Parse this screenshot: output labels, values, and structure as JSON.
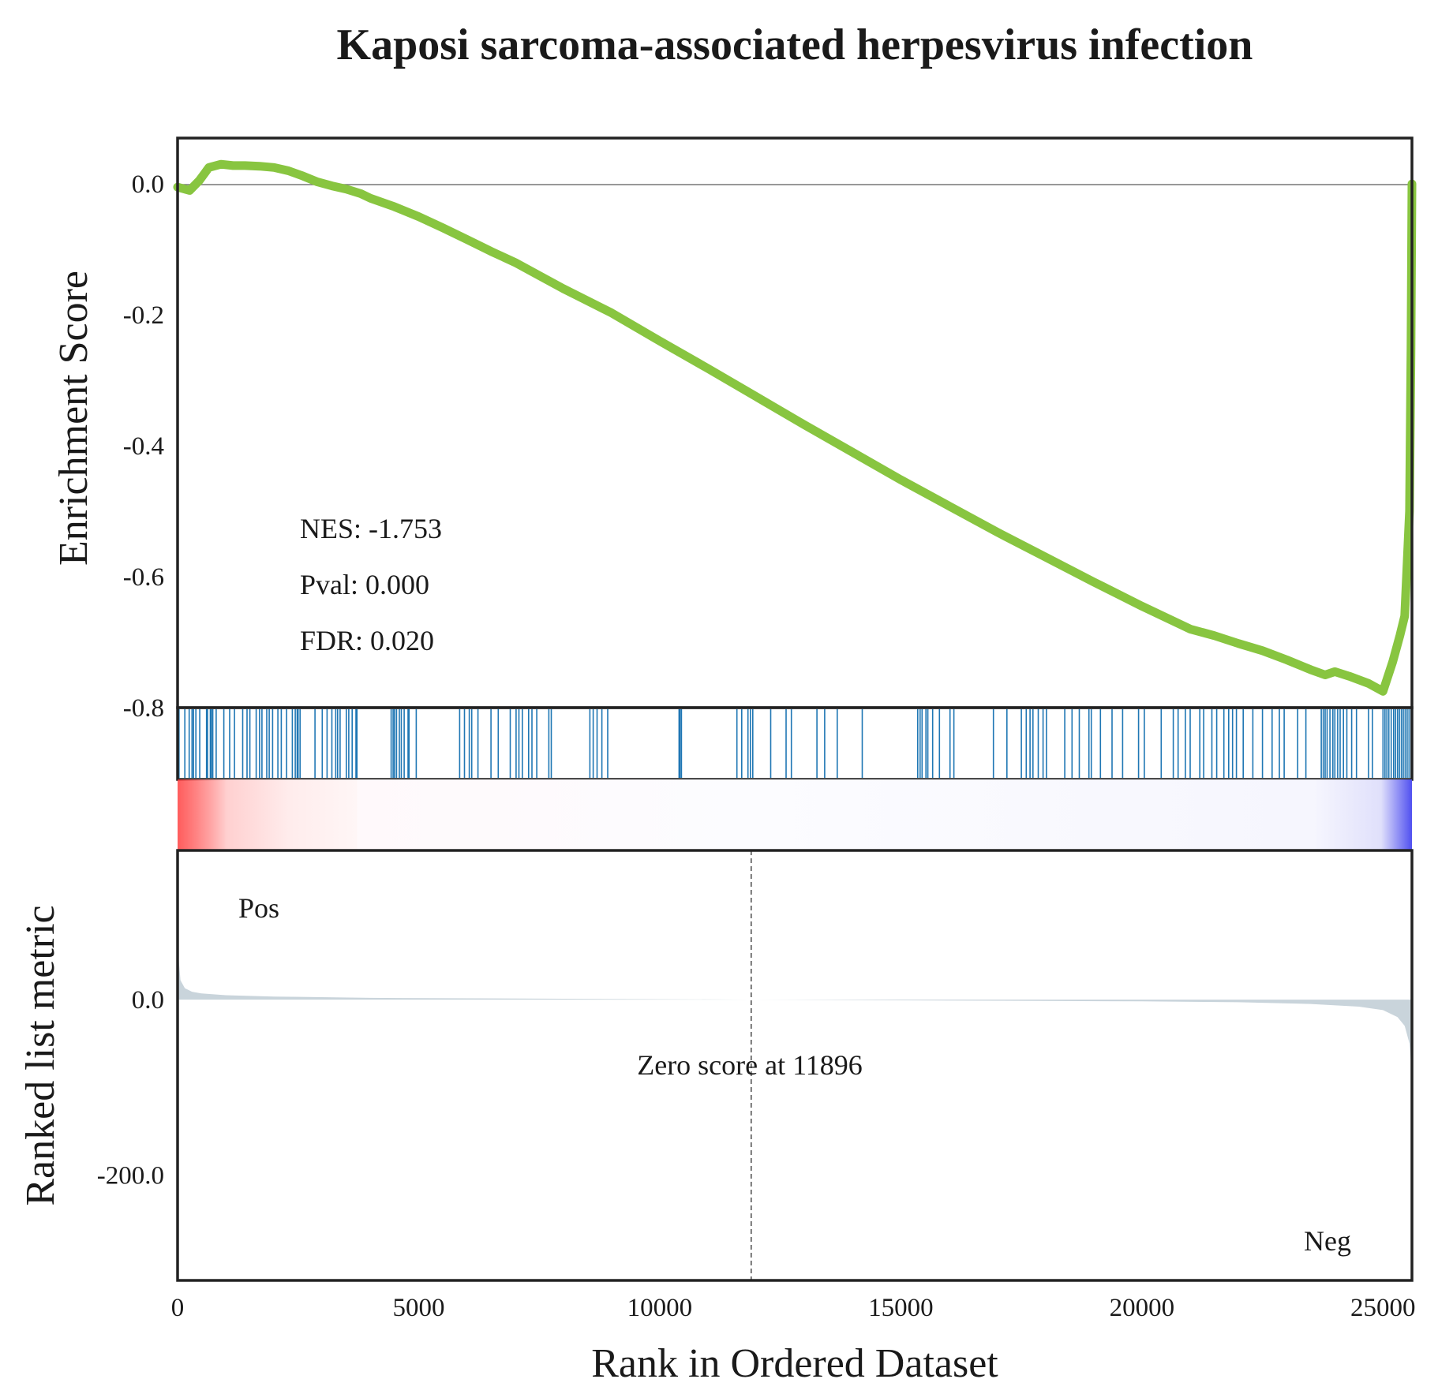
{
  "chart_data": {
    "type": "line",
    "title": "Kaposi sarcoma-associated herpesvirus infection",
    "xlabel": "Rank in Ordered Dataset",
    "xlim": [
      0,
      25600
    ],
    "x_ticks": [
      "0",
      "5000",
      "10000",
      "15000",
      "20000",
      "25000"
    ],
    "x_tick_values": [
      0,
      5000,
      10000,
      15000,
      20000,
      25000
    ],
    "es_panel": {
      "ylabel": "Enrichment Score",
      "ylim": [
        -0.8,
        0.07
      ],
      "y_ticks": [
        "0.0",
        "-0.2",
        "-0.4",
        "-0.6",
        "-0.8"
      ],
      "y_tick_values": [
        0.0,
        -0.2,
        -0.4,
        -0.6,
        -0.8
      ],
      "series": [
        {
          "color": "#88c540",
          "x": [
            0,
            250,
            450,
            650,
            900,
            1150,
            1400,
            1700,
            2000,
            2300,
            2600,
            2900,
            3200,
            3500,
            3800,
            4000,
            4500,
            5000,
            5500,
            6000,
            6500,
            7000,
            7500,
            8000,
            9000,
            10000,
            11000,
            12000,
            13000,
            14000,
            15000,
            16000,
            17000,
            18000,
            19000,
            20000,
            21000,
            21500,
            22000,
            22500,
            23000,
            23500,
            23800,
            24000,
            24300,
            24700,
            25000,
            25200,
            25350,
            25450,
            25550,
            25580,
            25600
          ],
          "y": [
            -0.005,
            -0.01,
            0.005,
            0.025,
            0.03,
            0.028,
            0.028,
            0.027,
            0.025,
            0.02,
            0.012,
            0.003,
            -0.003,
            -0.008,
            -0.015,
            -0.022,
            -0.035,
            -0.05,
            -0.067,
            -0.085,
            -0.103,
            -0.12,
            -0.14,
            -0.16,
            -0.197,
            -0.24,
            -0.282,
            -0.325,
            -0.368,
            -0.41,
            -0.452,
            -0.492,
            -0.532,
            -0.57,
            -0.608,
            -0.645,
            -0.68,
            -0.69,
            -0.702,
            -0.713,
            -0.727,
            -0.742,
            -0.75,
            -0.745,
            -0.752,
            -0.763,
            -0.775,
            -0.73,
            -0.69,
            -0.66,
            -0.5,
            -0.25,
            0.0
          ]
        }
      ],
      "annotations": [
        "NES: -1.753",
        "Pval: 0.000",
        "FDR: 0.020"
      ]
    },
    "hits_panel": {
      "color": "#1f77b4",
      "positions": [
        30,
        150,
        240,
        300,
        330,
        380,
        460,
        600,
        620,
        680,
        700,
        730,
        800,
        960,
        1080,
        1180,
        1350,
        1440,
        1500,
        1630,
        1700,
        1750,
        1850,
        1900,
        1970,
        2080,
        2150,
        2260,
        2380,
        2440,
        2480,
        2500,
        2540,
        2850,
        3000,
        3100,
        3200,
        3280,
        3320,
        3370,
        3500,
        3550,
        3620,
        3700,
        3720,
        4430,
        4470,
        4500,
        4540,
        4600,
        4640,
        4700,
        4780,
        4800,
        4950,
        5850,
        5950,
        6050,
        6100,
        6230,
        6500,
        6650,
        6900,
        7020,
        7080,
        7150,
        7280,
        7350,
        7450,
        7700,
        7750,
        8550,
        8620,
        8700,
        8800,
        8920,
        10400,
        10420,
        10450,
        11600,
        11700,
        11830,
        11880,
        11930,
        12300,
        12620,
        12730,
        13260,
        13420,
        13680,
        14200,
        15350,
        15400,
        15440,
        15520,
        15560,
        15660,
        15800,
        16020,
        16100,
        16920,
        17200,
        17500,
        17600,
        17680,
        17740,
        17850,
        17950,
        18020,
        18400,
        18550,
        18700,
        18900,
        18950,
        19140,
        19380,
        19600,
        19930,
        20050,
        20400,
        20650,
        20750,
        20900,
        21000,
        21200,
        21280,
        21450,
        21550,
        21700,
        21800,
        21880,
        21960,
        22100,
        22300,
        22500,
        22700,
        22850,
        22950,
        23230,
        23400,
        23720,
        23760,
        23800,
        23840,
        23900,
        23960,
        24000,
        24060,
        24110,
        24180,
        24250,
        24350,
        24450,
        24700,
        24780,
        25000,
        25040,
        25080,
        25120,
        25170,
        25220,
        25260,
        25300,
        25340,
        25380,
        25420,
        25460,
        25500,
        25540,
        25580
      ]
    },
    "metric_panel": {
      "ylabel": "Ranked list metric",
      "ylim": [
        -320,
        170
      ],
      "y_ticks": [
        "0.0",
        "-200.0"
      ],
      "y_tick_values": [
        0.0,
        -200.0
      ],
      "fill_color": "#c9d4db",
      "x": [
        0,
        60,
        150,
        300,
        500,
        1000,
        2000,
        4000,
        8000,
        11896,
        16000,
        20000,
        22000,
        23500,
        24500,
        25000,
        25300,
        25450,
        25550,
        25600
      ],
      "y": [
        60,
        22,
        13,
        9,
        7,
        5,
        3.5,
        2,
        1,
        0,
        -1,
        -2,
        -3,
        -5,
        -8,
        -12,
        -20,
        -30,
        -50,
        -85
      ],
      "zero_cross": 11896,
      "zero_label": "Zero score at 11896",
      "pos_label": "Pos",
      "neg_label": "Neg",
      "pos_color": "#ff0000",
      "neg_color": "#0000ff"
    }
  }
}
